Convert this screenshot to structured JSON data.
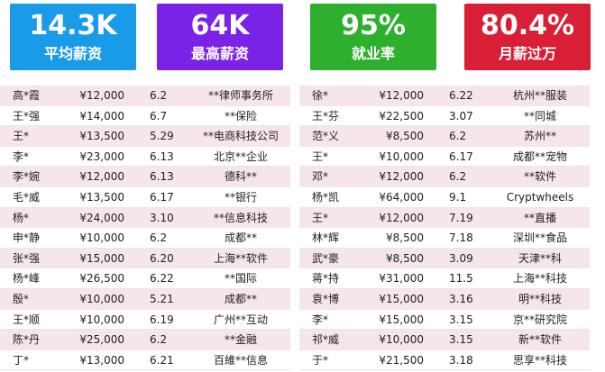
{
  "stats": [
    {
      "value": "14.3K",
      "label": "平均薪资",
      "color": "#1a9be8"
    },
    {
      "value": "64K",
      "label": "最高薪资",
      "color": "#7a22e6"
    },
    {
      "value": "95%",
      "label": "就业率",
      "color": "#2eb02e"
    },
    {
      "value": "80.4%",
      "label": "月薪过万",
      "color": "#d91f36"
    }
  ],
  "left_table": [
    {
      "name": "高*霞",
      "salary": "¥12,000",
      "ratio": "6.2",
      "company": "**律师事务所"
    },
    {
      "name": "王*强",
      "salary": "¥14,000",
      "ratio": "6.7",
      "company": "**保险"
    },
    {
      "name": "王*",
      "salary": "¥13,500",
      "ratio": "5.29",
      "company": "**电商科技公司"
    },
    {
      "name": "李*",
      "salary": "¥23,000",
      "ratio": "6.13",
      "company": "北京**企业"
    },
    {
      "name": "李*婉",
      "salary": "¥12,000",
      "ratio": "6.13",
      "company": "德科**"
    },
    {
      "name": "毛*威",
      "salary": "¥13,500",
      "ratio": "6.17",
      "company": "**银行"
    },
    {
      "name": "杨*",
      "salary": "¥24,000",
      "ratio": "3.10",
      "company": "**信息科技"
    },
    {
      "name": "申*静",
      "salary": "¥10,000",
      "ratio": "6.2",
      "company": "成都**"
    },
    {
      "name": "张*强",
      "salary": "¥15,000",
      "ratio": "6.20",
      "company": "上海**软件"
    },
    {
      "name": "杨*峰",
      "salary": "¥26,500",
      "ratio": "6.22",
      "company": "**国际"
    },
    {
      "name": "殷*",
      "salary": "¥10,000",
      "ratio": "5.21",
      "company": "成都**"
    },
    {
      "name": "王*顺",
      "salary": "¥10,000",
      "ratio": "6.19",
      "company": "广州**互动"
    },
    {
      "name": "陈*丹",
      "salary": "¥25,000",
      "ratio": "6.2",
      "company": "**金融"
    },
    {
      "name": "丁*",
      "salary": "¥13,000",
      "ratio": "6.21",
      "company": "百維**信息"
    }
  ],
  "right_table": [
    {
      "name": "徐*",
      "salary": "¥12,000",
      "ratio": "6.22",
      "company": "杭州**服装"
    },
    {
      "name": "王*芬",
      "salary": "¥22,500",
      "ratio": "3.07",
      "company": "**同城"
    },
    {
      "name": "范*义",
      "salary": "¥8,500",
      "ratio": "6.2",
      "company": "苏州**"
    },
    {
      "name": "王*",
      "salary": "¥10,000",
      "ratio": "6.17",
      "company": "成都**宠物"
    },
    {
      "name": "邓*",
      "salary": "¥12,000",
      "ratio": "6.2",
      "company": "**软件"
    },
    {
      "name": "杨*凯",
      "salary": "¥64,000",
      "ratio": "9.1",
      "company": "Cryptwheels"
    },
    {
      "name": "王*",
      "salary": "¥12,000",
      "ratio": "7.19",
      "company": "**直播"
    },
    {
      "name": "林*辉",
      "salary": "¥8,500",
      "ratio": "7.18",
      "company": "深圳**食品"
    },
    {
      "name": "武*豪",
      "salary": "¥8,500",
      "ratio": "3.09",
      "company": "天津**科"
    },
    {
      "name": "蒋*持",
      "salary": "¥31,000",
      "ratio": "11.5",
      "company": "上海**科技"
    },
    {
      "name": "袁*博",
      "salary": "¥15,000",
      "ratio": "3.16",
      "company": "明**科技"
    },
    {
      "name": "李*",
      "salary": "¥15,000",
      "ratio": "3.15",
      "company": "京**研究院"
    },
    {
      "name": "祁*威",
      "salary": "¥10,000",
      "ratio": "3.15",
      "company": "新**软件"
    },
    {
      "name": "于*",
      "salary": "¥21,500",
      "ratio": "3.18",
      "company": "思享**科技"
    }
  ]
}
